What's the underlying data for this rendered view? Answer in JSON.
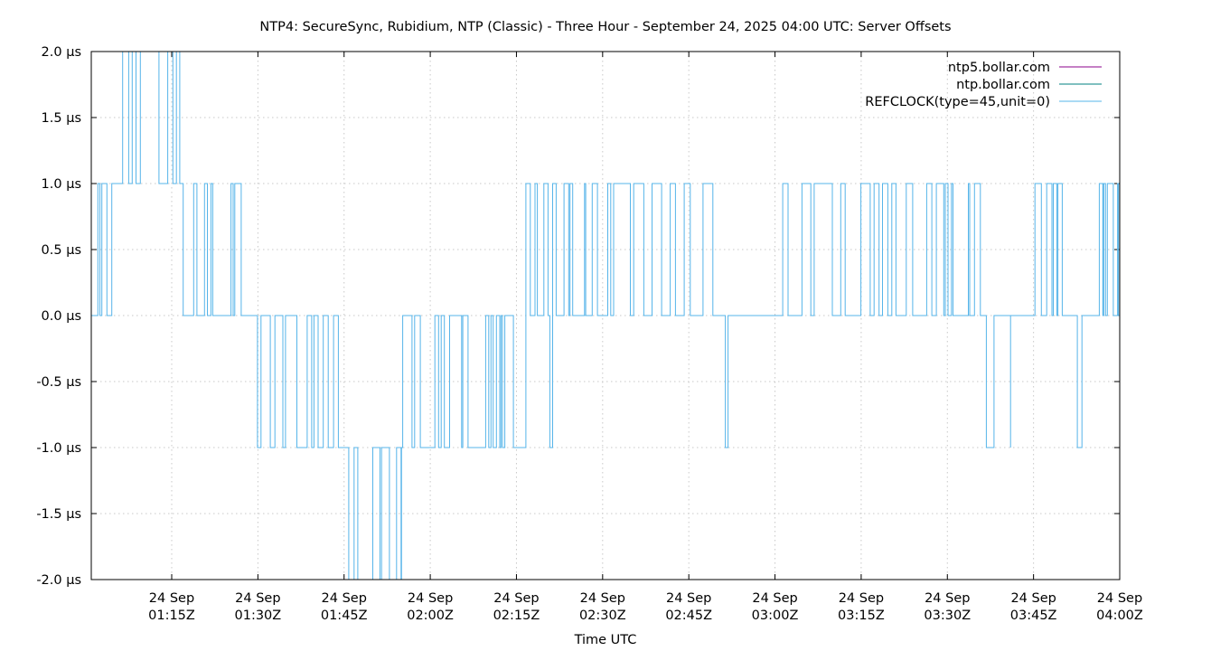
{
  "chart_data": {
    "type": "line",
    "title": "NTP4: SecureSync, Rubidium, NTP (Classic) - Three Hour - September 24, 2025 04:00 UTC: Server Offsets",
    "xlabel": "Time UTC",
    "ylabel": "",
    "x_range": [
      "2025-09-24T01:01:00Z",
      "2025-09-24T04:00:00Z"
    ],
    "ylim": [
      -2.0,
      2.0
    ],
    "y_unit": "µs",
    "grid": true,
    "legend_position": "top-right",
    "y_ticks": [
      "2.0 µs",
      "1.5 µs",
      "1.0 µs",
      "0.5 µs",
      "0.0 µs",
      "-0.5 µs",
      "-1.0 µs",
      "-1.5 µs",
      "-2.0 µs"
    ],
    "y_tick_values": [
      2.0,
      1.5,
      1.0,
      0.5,
      0.0,
      -0.5,
      -1.0,
      -1.5,
      -2.0
    ],
    "x_ticks": [
      {
        "time": "2025-09-24T01:15:00Z",
        "line1": "24 Sep",
        "line2": "01:15Z"
      },
      {
        "time": "2025-09-24T01:30:00Z",
        "line1": "24 Sep",
        "line2": "01:30Z"
      },
      {
        "time": "2025-09-24T01:45:00Z",
        "line1": "24 Sep",
        "line2": "01:45Z"
      },
      {
        "time": "2025-09-24T02:00:00Z",
        "line1": "24 Sep",
        "line2": "02:00Z"
      },
      {
        "time": "2025-09-24T02:15:00Z",
        "line1": "24 Sep",
        "line2": "02:15Z"
      },
      {
        "time": "2025-09-24T02:30:00Z",
        "line1": "24 Sep",
        "line2": "02:30Z"
      },
      {
        "time": "2025-09-24T02:45:00Z",
        "line1": "24 Sep",
        "line2": "02:45Z"
      },
      {
        "time": "2025-09-24T03:00:00Z",
        "line1": "24 Sep",
        "line2": "03:00Z"
      },
      {
        "time": "2025-09-24T03:15:00Z",
        "line1": "24 Sep",
        "line2": "03:15Z"
      },
      {
        "time": "2025-09-24T03:30:00Z",
        "line1": "24 Sep",
        "line2": "03:30Z"
      },
      {
        "time": "2025-09-24T03:45:00Z",
        "line1": "24 Sep",
        "line2": "03:45Z"
      },
      {
        "time": "2025-09-24T04:00:00Z",
        "line1": "24 Sep",
        "line2": "04:00Z"
      }
    ],
    "series": [
      {
        "name": "ntp5.bollar.com",
        "color": "#8b008b",
        "segments": []
      },
      {
        "name": "ntp.bollar.com",
        "color": "#008080",
        "segments": []
      },
      {
        "name": "REFCLOCK(type=45,unit=0)",
        "color": "#56b4e9",
        "segments": [
          {
            "start": "2025-09-24T01:01:00Z",
            "end": "2025-09-24T01:05:00Z",
            "levels": [
              0.0,
              1.0
            ]
          },
          {
            "start": "2025-09-24T01:05:00Z",
            "end": "2025-09-24T01:17:00Z",
            "levels": [
              1.0,
              2.0
            ]
          },
          {
            "start": "2025-09-24T01:17:00Z",
            "end": "2025-09-24T01:28:00Z",
            "levels": [
              0.0,
              1.0
            ]
          },
          {
            "start": "2025-09-24T01:28:00Z",
            "end": "2025-09-24T01:29:30Z",
            "levels": [
              0.0
            ]
          },
          {
            "start": "2025-09-24T01:29:30Z",
            "end": "2025-09-24T01:44:00Z",
            "levels": [
              0.0,
              -1.0
            ]
          },
          {
            "start": "2025-09-24T01:44:00Z",
            "end": "2025-09-24T01:55:00Z",
            "levels": [
              -1.0,
              -2.0
            ]
          },
          {
            "start": "2025-09-24T01:55:00Z",
            "end": "2025-09-24T02:14:00Z",
            "levels": [
              -1.0,
              0.0
            ]
          },
          {
            "start": "2025-09-24T02:14:00Z",
            "end": "2025-09-24T02:22:00Z",
            "levels": [
              0.0,
              1.0,
              -1.0
            ]
          },
          {
            "start": "2025-09-24T02:22:00Z",
            "end": "2025-09-24T02:50:00Z",
            "levels": [
              0.0,
              1.0
            ]
          },
          {
            "start": "2025-09-24T02:50:00Z",
            "end": "2025-09-24T02:53:00Z",
            "levels": [
              0.0,
              -1.0
            ]
          },
          {
            "start": "2025-09-24T02:53:00Z",
            "end": "2025-09-24T02:59:00Z",
            "levels": [
              0.0
            ]
          },
          {
            "start": "2025-09-24T02:59:00Z",
            "end": "2025-09-24T03:36:00Z",
            "levels": [
              0.0,
              1.0
            ]
          },
          {
            "start": "2025-09-24T03:36:00Z",
            "end": "2025-09-24T03:41:00Z",
            "levels": [
              0.0,
              -1.0
            ]
          },
          {
            "start": "2025-09-24T03:41:00Z",
            "end": "2025-09-24T03:45:00Z",
            "levels": [
              0.0
            ]
          },
          {
            "start": "2025-09-24T03:45:00Z",
            "end": "2025-09-24T03:50:00Z",
            "levels": [
              0.0,
              1.0
            ]
          },
          {
            "start": "2025-09-24T03:50:00Z",
            "end": "2025-09-24T03:54:00Z",
            "levels": [
              0.0,
              -1.0
            ]
          },
          {
            "start": "2025-09-24T03:54:00Z",
            "end": "2025-09-24T03:56:00Z",
            "levels": [
              0.0
            ]
          },
          {
            "start": "2025-09-24T03:56:00Z",
            "end": "2025-09-24T04:00:00Z",
            "levels": [
              0.0,
              1.0
            ]
          }
        ]
      }
    ]
  }
}
